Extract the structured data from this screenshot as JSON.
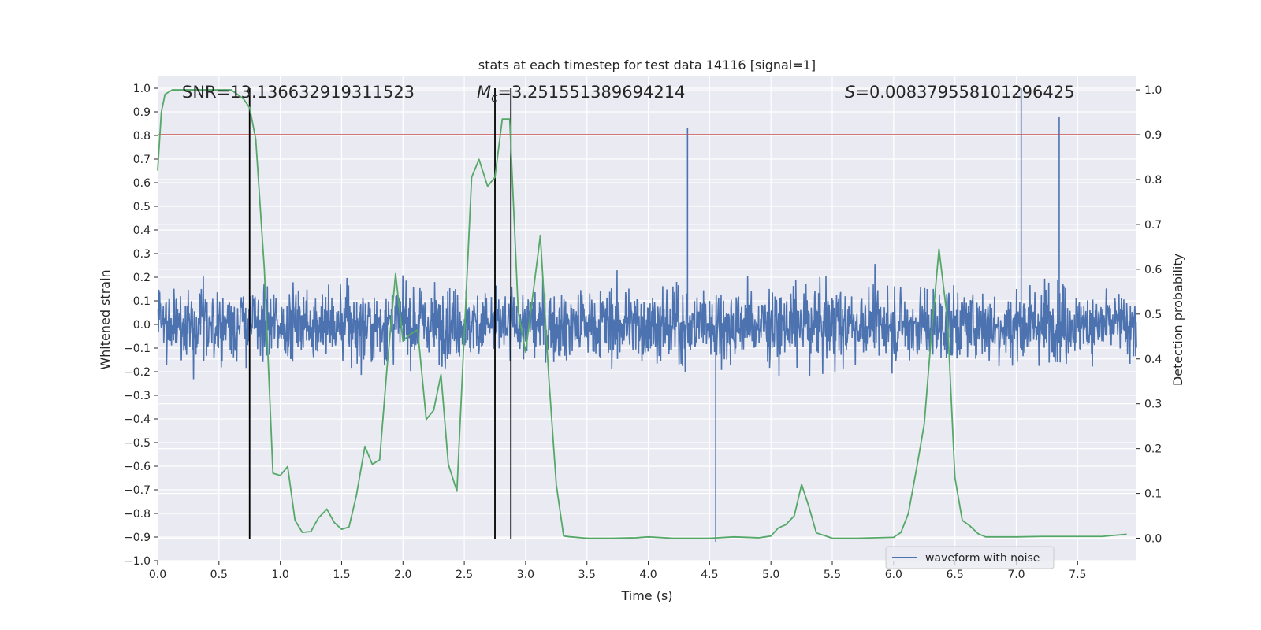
{
  "chart_data": {
    "type": "line",
    "title": "stats at each timestep for test data 14116 [signal=1]",
    "xlabel": "Time (s)",
    "ylabel": "Whitened strain",
    "ylabel_right": "Detection probability",
    "xlim": [
      0.0,
      7.98
    ],
    "ylim": [
      -1.0,
      1.05
    ],
    "ylim_right": [
      -0.05,
      1.03
    ],
    "x_ticks": [
      "0.0",
      "0.5",
      "1.0",
      "1.5",
      "2.0",
      "2.5",
      "3.0",
      "3.5",
      "4.0",
      "4.5",
      "5.0",
      "5.5",
      "6.0",
      "6.5",
      "7.0",
      "7.5"
    ],
    "x_tick_values": [
      0.0,
      0.5,
      1.0,
      1.5,
      2.0,
      2.5,
      3.0,
      3.5,
      4.0,
      4.5,
      5.0,
      5.5,
      6.0,
      6.5,
      7.0,
      7.5
    ],
    "y_ticks": [
      "−1.0",
      "−0.9",
      "−0.8",
      "−0.7",
      "−0.6",
      "−0.5",
      "−0.4",
      "−0.3",
      "−0.2",
      "−0.1",
      "0.0",
      "0.1",
      "0.2",
      "0.3",
      "0.4",
      "0.5",
      "0.6",
      "0.7",
      "0.8",
      "0.9",
      "1.0"
    ],
    "y_tick_values": [
      -1.0,
      -0.9,
      -0.8,
      -0.7,
      -0.6,
      -0.5,
      -0.4,
      -0.3,
      -0.2,
      -0.1,
      0.0,
      0.1,
      0.2,
      0.3,
      0.4,
      0.5,
      0.6,
      0.7,
      0.8,
      0.9,
      1.0
    ],
    "y_ticks_right": [
      "0.0",
      "0.1",
      "0.2",
      "0.3",
      "0.4",
      "0.5",
      "0.6",
      "0.7",
      "0.8",
      "0.9",
      "1.0"
    ],
    "y_tick_values_right": [
      0.0,
      0.1,
      0.2,
      0.3,
      0.4,
      0.5,
      0.6,
      0.7,
      0.8,
      0.9,
      1.0
    ],
    "annotations": {
      "snr": "SNR=13.136632919311523",
      "mc": "M",
      "mc_sub": "c",
      "mc_value": "=3.251551389694214",
      "s": "S",
      "s_value": "=0.008379558101296425"
    },
    "legend": {
      "label": "waveform with noise",
      "placement": "lower-right"
    },
    "threshold_line": {
      "axis": "right",
      "value": 0.9,
      "color": "#c44e52"
    },
    "vertical_markers": [
      0.75,
      2.75,
      2.88
    ],
    "waveform": {
      "name": "waveform with noise",
      "color": "#4c72b0",
      "notable_spikes": [
        {
          "t": 4.32,
          "v": 0.83
        },
        {
          "t": 4.55,
          "v": -0.92
        },
        {
          "t": 7.04,
          "v": 1.0
        },
        {
          "t": 7.35,
          "v": 0.88
        }
      ]
    },
    "series": [
      {
        "name": "detection probability",
        "axis": "right",
        "color": "#55a868",
        "x": [
          0.0,
          0.03,
          0.06,
          0.12,
          0.2,
          0.3,
          0.4,
          0.5,
          0.6,
          0.65,
          0.7,
          0.75,
          0.8,
          0.87,
          0.94,
          1.0,
          1.06,
          1.12,
          1.18,
          1.25,
          1.31,
          1.38,
          1.44,
          1.5,
          1.56,
          1.62,
          1.69,
          1.75,
          1.81,
          1.87,
          1.94,
          2.0,
          2.06,
          2.12,
          2.19,
          2.25,
          2.31,
          2.37,
          2.44,
          2.5,
          2.56,
          2.62,
          2.69,
          2.75,
          2.81,
          2.87,
          2.94,
          3.0,
          3.06,
          3.12,
          3.19,
          3.25,
          3.31,
          3.37,
          3.5,
          3.7,
          3.9,
          4.0,
          4.2,
          4.5,
          4.7,
          4.9,
          5.0,
          5.06,
          5.12,
          5.19,
          5.25,
          5.31,
          5.37,
          5.5,
          5.7,
          6.0,
          6.06,
          6.12,
          6.19,
          6.25,
          6.31,
          6.37,
          6.44,
          6.5,
          6.56,
          6.62,
          6.69,
          6.75,
          7.0,
          7.2,
          7.5,
          7.7,
          7.9
        ],
        "values": [
          0.82,
          0.95,
          0.99,
          1.0,
          1.0,
          1.0,
          1.0,
          1.0,
          1.0,
          0.99,
          0.98,
          0.96,
          0.89,
          0.6,
          0.145,
          0.14,
          0.16,
          0.04,
          0.013,
          0.015,
          0.045,
          0.065,
          0.035,
          0.02,
          0.025,
          0.095,
          0.205,
          0.165,
          0.175,
          0.38,
          0.59,
          0.44,
          0.455,
          0.465,
          0.265,
          0.285,
          0.365,
          0.165,
          0.105,
          0.455,
          0.805,
          0.845,
          0.785,
          0.805,
          0.935,
          0.935,
          0.505,
          0.415,
          0.545,
          0.675,
          0.355,
          0.12,
          0.005,
          0.003,
          0.0,
          0.0,
          0.001,
          0.003,
          0.0,
          0.0,
          0.003,
          0.001,
          0.005,
          0.023,
          0.03,
          0.05,
          0.12,
          0.07,
          0.012,
          0.0,
          0.0,
          0.002,
          0.013,
          0.055,
          0.16,
          0.255,
          0.46,
          0.645,
          0.485,
          0.135,
          0.04,
          0.028,
          0.01,
          0.003,
          0.003,
          0.004,
          0.004,
          0.004,
          0.009
        ]
      }
    ]
  }
}
